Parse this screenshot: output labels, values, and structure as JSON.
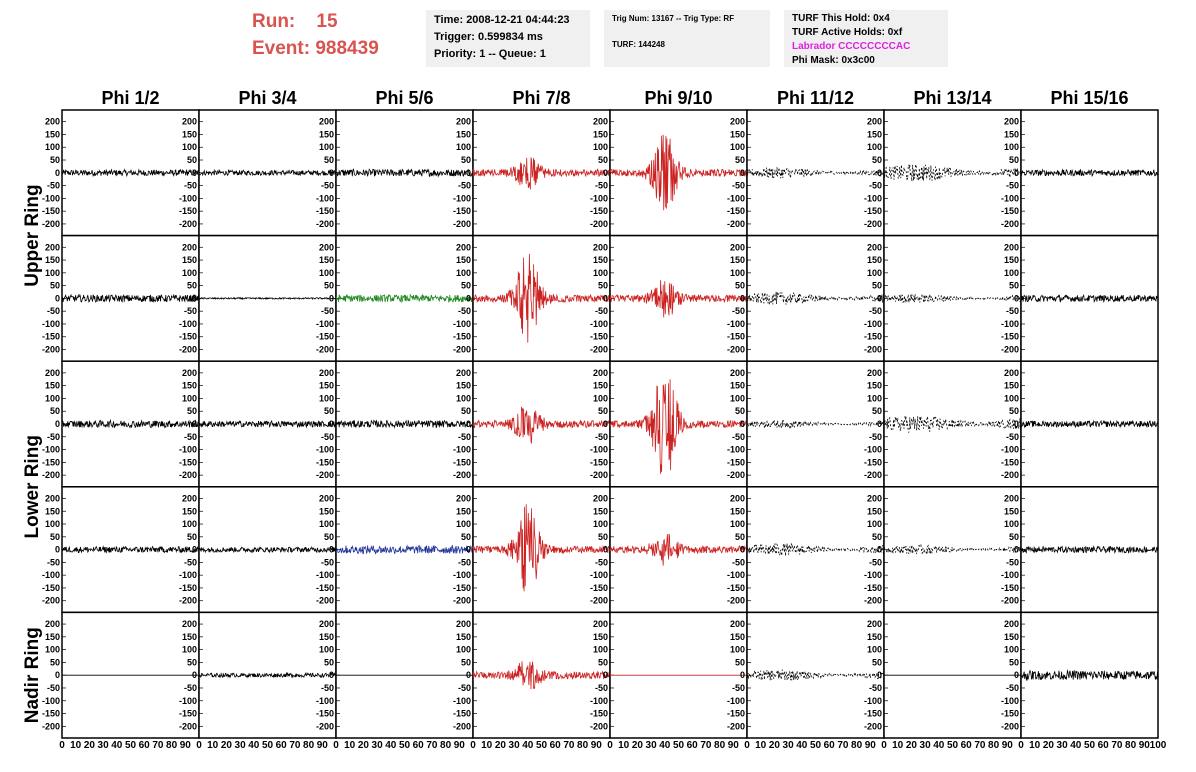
{
  "run_label": "Run:",
  "run_value": "15",
  "event_label": "Event:",
  "event_value": "988439",
  "info_box_1": {
    "time": "Time: 2008-12-21 04:44:23",
    "trigger": "Trigger: 0.599834 ms",
    "priority": "Priority: 1 -- Queue: 1"
  },
  "info_box_2": {
    "trig": "Trig Num: 13167 -- Trig Type: RF",
    "turf": "TURF: 144248"
  },
  "info_box_3": {
    "hold": "TURF This Hold: 0x4",
    "active": "TURF Active Holds: 0xf",
    "labrador": "Labrador CCCCCCCCAC",
    "phimask": "Phi Mask: 0x3c00"
  },
  "colors": {
    "red": "#cc2222",
    "green": "#228822",
    "blue": "#223399",
    "black": "#000000",
    "magenta": "#e020e0"
  },
  "chart_data": {
    "type": "line",
    "columns": [
      "Phi 1/2",
      "Phi 3/4",
      "Phi 5/6",
      "Phi 7/8",
      "Phi 9/10",
      "Phi 11/12",
      "Phi 13/14",
      "Phi 15/16"
    ],
    "rows": [
      "Upper Ring",
      "Upper Ring",
      "Lower Ring",
      "Lower Ring",
      "Nadir Ring"
    ],
    "row_labels": [
      "Upper Ring",
      "Lower Ring",
      "Nadir Ring"
    ],
    "y_ticks": [
      200,
      150,
      100,
      50,
      0,
      -50,
      -100,
      -150,
      -200
    ],
    "x_ticks": [
      0,
      10,
      20,
      30,
      40,
      50,
      60,
      70,
      80,
      90,
      100
    ],
    "ylim": [
      -230,
      230
    ],
    "xlim": [
      0,
      100
    ],
    "panels": [
      [
        {
          "color": "black",
          "style": "noise",
          "amp": 12
        },
        {
          "color": "black",
          "style": "noise",
          "amp": 10
        },
        {
          "color": "black",
          "style": "noise",
          "amp": 14
        },
        {
          "color": "red",
          "style": "pulse",
          "amp": 55
        },
        {
          "color": "red",
          "style": "pulse",
          "amp": 150
        },
        {
          "color": "black",
          "style": "dashed",
          "amp": 22
        },
        {
          "color": "black",
          "style": "dashed",
          "amp": 35
        },
        {
          "color": "black",
          "style": "noise",
          "amp": 12
        }
      ],
      [
        {
          "color": "black",
          "style": "noise",
          "amp": 14
        },
        {
          "color": "black",
          "style": "noise",
          "amp": 3
        },
        {
          "color": "green",
          "style": "noise",
          "amp": 14
        },
        {
          "color": "red",
          "style": "pulse",
          "amp": 170
        },
        {
          "color": "red",
          "style": "pulse",
          "amp": 70
        },
        {
          "color": "black",
          "style": "dashed",
          "amp": 25
        },
        {
          "color": "black",
          "style": "dashed",
          "amp": 18
        },
        {
          "color": "black",
          "style": "noise",
          "amp": 13
        }
      ],
      [
        {
          "color": "black",
          "style": "noise",
          "amp": 14
        },
        {
          "color": "black",
          "style": "noise",
          "amp": 12
        },
        {
          "color": "black",
          "style": "noise",
          "amp": 14
        },
        {
          "color": "red",
          "style": "pulse",
          "amp": 70
        },
        {
          "color": "red",
          "style": "pulse",
          "amp": 210
        },
        {
          "color": "black",
          "style": "dashed",
          "amp": 15
        },
        {
          "color": "black",
          "style": "dashed",
          "amp": 35
        },
        {
          "color": "black",
          "style": "noise",
          "amp": 12
        }
      ],
      [
        {
          "color": "black",
          "style": "noise",
          "amp": 12
        },
        {
          "color": "black",
          "style": "noise",
          "amp": 10
        },
        {
          "color": "blue",
          "style": "noise",
          "amp": 16
        },
        {
          "color": "red",
          "style": "pulse",
          "amp": 170
        },
        {
          "color": "red",
          "style": "pulse",
          "amp": 55
        },
        {
          "color": "black",
          "style": "dashed",
          "amp": 25
        },
        {
          "color": "black",
          "style": "dashed",
          "amp": 18
        },
        {
          "color": "black",
          "style": "noise",
          "amp": 12
        }
      ],
      [
        {
          "color": "black",
          "style": "flat",
          "amp": 0
        },
        {
          "color": "black",
          "style": "noise",
          "amp": 8
        },
        {
          "color": "black",
          "style": "flat",
          "amp": 0
        },
        {
          "color": "red",
          "style": "pulse",
          "amp": 55
        },
        {
          "color": "red",
          "style": "flat",
          "amp": 0
        },
        {
          "color": "black",
          "style": "dashed",
          "amp": 22
        },
        {
          "color": "black",
          "style": "flat",
          "amp": 0
        },
        {
          "color": "black",
          "style": "noise",
          "amp": 18
        }
      ]
    ]
  }
}
